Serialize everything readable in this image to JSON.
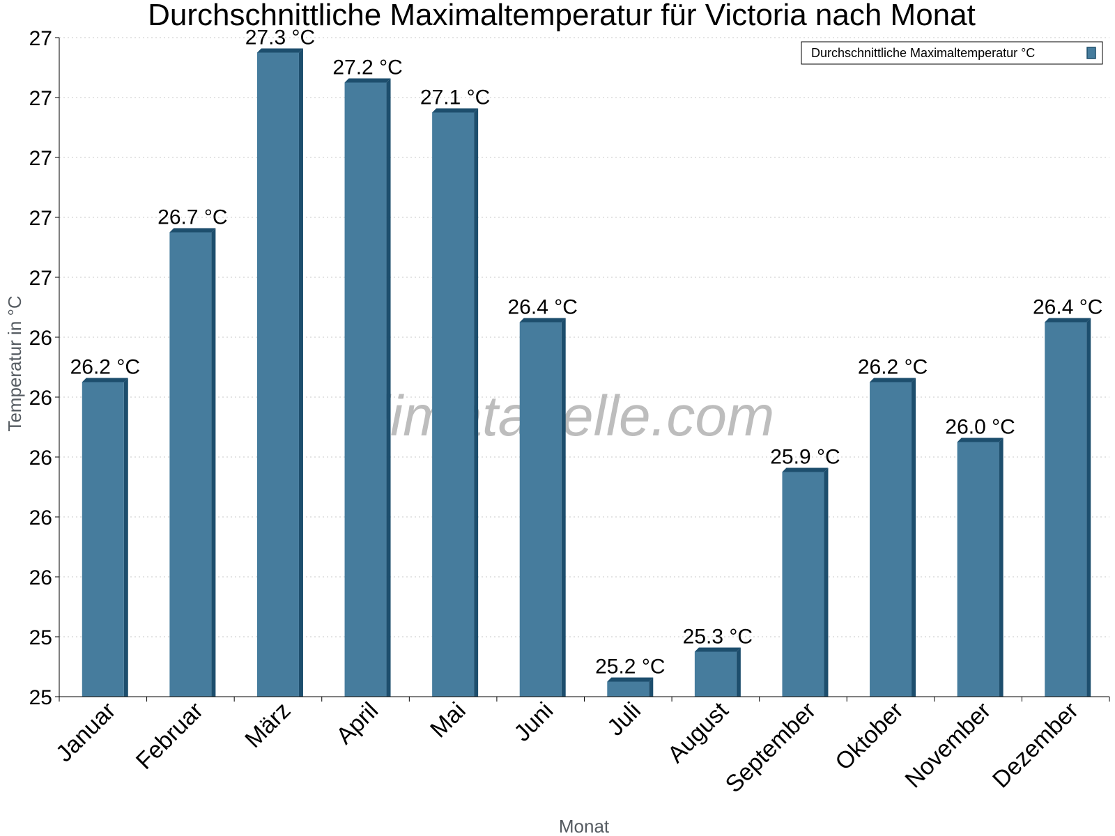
{
  "chart_data": {
    "type": "bar",
    "title": "Durchschnittliche Maximaltemperatur für Victoria nach Monat",
    "xlabel": "Monat",
    "ylabel": "Temperatur in °C",
    "categories": [
      "Januar",
      "Februar",
      "März",
      "April",
      "Mai",
      "Juni",
      "Juli",
      "August",
      "September",
      "Oktober",
      "November",
      "Dezember"
    ],
    "series": [
      {
        "name": "Durchschnittliche Maximaltemperatur °C",
        "values": [
          26.2,
          26.7,
          27.3,
          27.2,
          27.1,
          26.4,
          25.2,
          25.3,
          25.9,
          26.2,
          26.0,
          26.4
        ],
        "value_labels": [
          "26.2 °C",
          "26.7 °C",
          "27.3 °C",
          "27.2 °C",
          "27.1 °C",
          "26.4 °C",
          "25.2 °C",
          "25.3 °C",
          "25.9 °C",
          "26.2 °C",
          "26.0 °C",
          "26.4 °C"
        ]
      }
    ],
    "ylim": [
      25.15,
      27.35
    ],
    "yticks": [
      25.15,
      25.35,
      25.55,
      25.75,
      25.95,
      26.15,
      26.35,
      26.55,
      26.75,
      26.95,
      27.15,
      27.35
    ],
    "ytick_labels": [
      "25",
      "25",
      "26",
      "26",
      "26",
      "26",
      "26",
      "27",
      "27",
      "27",
      "27",
      "27"
    ],
    "grid": true,
    "legend_position": "top-right",
    "bar_color": "#467c9d",
    "bar_dark_color": "#1d4e6d",
    "watermark": "klimatabelle.com"
  }
}
